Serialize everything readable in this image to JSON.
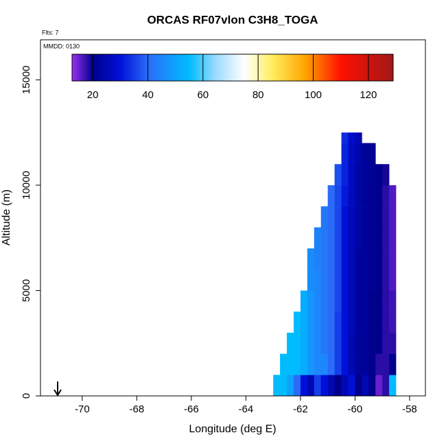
{
  "chart_data": {
    "type": "heatmap",
    "title": "ORCAS RF07vlon C3H8_TOGA",
    "annotations": [
      "Flts: 7",
      "MMDD: 0130"
    ],
    "x_label": "Longitude (deg E)",
    "y_label": "Altitude (m)",
    "xlim": [
      -71.53,
      -57.42
    ],
    "xticks": [
      -70,
      -68,
      -66,
      -64,
      -62,
      -60,
      -58
    ],
    "ylim": [
      0,
      16900
    ],
    "yticks": [
      0,
      5000,
      10000,
      15000
    ],
    "clim": [
      12.5,
      129
    ],
    "cticks": [
      20,
      40,
      60,
      80,
      100,
      120
    ],
    "colormap": [
      {
        "value": 12.5,
        "color": "#9a30f0"
      },
      {
        "value": 20,
        "color": "#00008b"
      },
      {
        "value": 30,
        "color": "#0010d8"
      },
      {
        "value": 40,
        "color": "#2a6cf8"
      },
      {
        "value": 55,
        "color": "#00bcff"
      },
      {
        "value": 65,
        "color": "#a0dcff"
      },
      {
        "value": 75,
        "color": "#ffffff"
      },
      {
        "value": 85,
        "color": "#ffee60"
      },
      {
        "value": 97,
        "color": "#ffa500"
      },
      {
        "value": 110,
        "color": "#ff1000"
      },
      {
        "value": 129,
        "color": "#a01818"
      }
    ],
    "xbins": [
      -63.0,
      -62.75,
      -62.5,
      -62.25,
      -62.0,
      -61.75,
      -61.5,
      -61.25,
      -61.0,
      -60.75,
      -60.5,
      -60.25,
      -60.0,
      -59.75,
      -59.5,
      -59.25,
      -59.0,
      -58.75,
      -58.5
    ],
    "ybins": [
      0,
      1000,
      2000,
      3000,
      4000,
      5000,
      6000,
      7000,
      8000,
      9000,
      10000,
      11000,
      12000,
      12500
    ],
    "z": [
      [
        55,
        55,
        50,
        40,
        30,
        25,
        35,
        30,
        25,
        20,
        25,
        30,
        20,
        25,
        20,
        15,
        18,
        55
      ],
      [
        null,
        55,
        55,
        55,
        52,
        48,
        45,
        45,
        40,
        35,
        30,
        25,
        22,
        22,
        20,
        18,
        18,
        20
      ],
      [
        null,
        null,
        55,
        55,
        52,
        48,
        45,
        42,
        40,
        35,
        30,
        25,
        22,
        22,
        20,
        20,
        18,
        18
      ],
      [
        null,
        null,
        null,
        55,
        52,
        48,
        45,
        42,
        40,
        35,
        30,
        26,
        22,
        22,
        20,
        20,
        18,
        17
      ],
      [
        null,
        null,
        null,
        null,
        52,
        48,
        45,
        42,
        40,
        36,
        30,
        26,
        22,
        22,
        20,
        20,
        18,
        17
      ],
      [
        null,
        null,
        null,
        null,
        null,
        46,
        45,
        42,
        40,
        36,
        30,
        26,
        22,
        22,
        21,
        20,
        18,
        16
      ],
      [
        null,
        null,
        null,
        null,
        null,
        46,
        44,
        42,
        40,
        36,
        30,
        26,
        22,
        22,
        21,
        20,
        18,
        16
      ],
      [
        null,
        null,
        null,
        null,
        null,
        null,
        44,
        42,
        40,
        36,
        30,
        26,
        23,
        22,
        21,
        20,
        18,
        16
      ],
      [
        null,
        null,
        null,
        null,
        null,
        null,
        null,
        42,
        40,
        36,
        30,
        26,
        23,
        22,
        21,
        20,
        18,
        16
      ],
      [
        null,
        null,
        null,
        null,
        null,
        null,
        null,
        null,
        40,
        36,
        31,
        27,
        23,
        22,
        21,
        20,
        18,
        16
      ],
      [
        null,
        null,
        null,
        null,
        null,
        null,
        null,
        null,
        null,
        37,
        32,
        27,
        23,
        22,
        21,
        20,
        19,
        null
      ],
      [
        null,
        null,
        null,
        null,
        null,
        null,
        null,
        null,
        null,
        null,
        32,
        27,
        24,
        22,
        21,
        null,
        null,
        null
      ],
      [
        null,
        null,
        null,
        null,
        null,
        null,
        null,
        null,
        null,
        null,
        33,
        28,
        25,
        null,
        null,
        null,
        null,
        null
      ]
    ]
  }
}
